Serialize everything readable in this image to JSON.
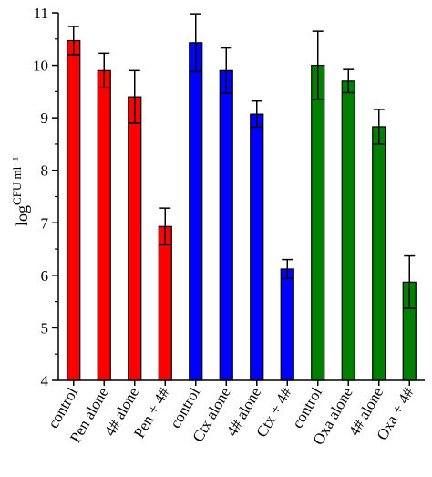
{
  "chart_data": {
    "type": "bar",
    "title": "",
    "xlabel": "",
    "ylabel": {
      "base": "log",
      "superscript": "CFU ml⁻¹"
    },
    "ylim": [
      4,
      11
    ],
    "yticks": [
      "4",
      "5",
      "6",
      "7",
      "8",
      "9",
      "10",
      "11"
    ],
    "grid": false,
    "legend": "none",
    "categories": [
      "control",
      "Pen alone",
      "4# alone",
      "Pen + 4#",
      "control",
      "Ctx alone",
      "4# alone",
      "Ctx + 4#",
      "control",
      "Oxa alone",
      "4# alone",
      "Oxa + 4#"
    ],
    "values": [
      10.47,
      9.9,
      9.4,
      6.93,
      10.43,
      9.9,
      9.07,
      6.12,
      10.0,
      9.7,
      8.83,
      5.87
    ],
    "errors": [
      0.27,
      0.33,
      0.5,
      0.35,
      0.55,
      0.43,
      0.25,
      0.18,
      0.65,
      0.22,
      0.33,
      0.5
    ],
    "bar_colors": [
      "#ff0000",
      "#ff0000",
      "#ff0000",
      "#ff0000",
      "#0000ff",
      "#0000ff",
      "#0000ff",
      "#0000ff",
      "#008000",
      "#008000",
      "#008000",
      "#008000"
    ]
  }
}
